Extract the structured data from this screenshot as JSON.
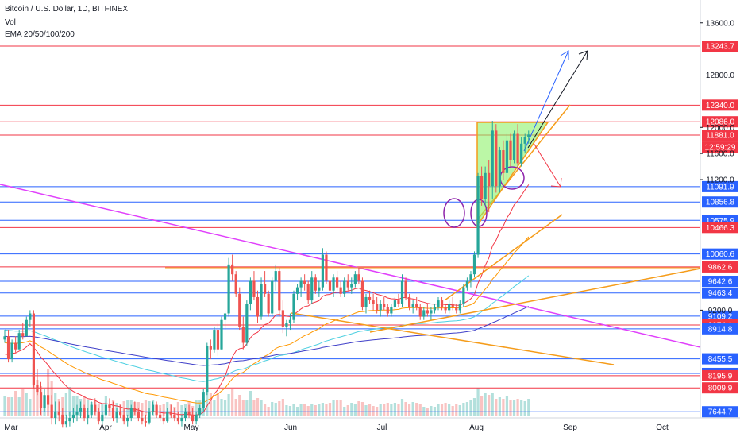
{
  "header": {
    "symbol_line": "Bitcoin / U.S. Dollar, 1D, BITFINEX",
    "vol_label": "Vol",
    "ema_label": "EMA 20/50/100/200"
  },
  "colors": {
    "up": "#26a69a",
    "down": "#ef5350",
    "ema20": "#f23645",
    "ema50": "#ff9800",
    "ema100": "#4dd0e1",
    "ema200": "#3f3fc8",
    "support_line": "#2962ff",
    "resistance_line": "#f23645",
    "magenta": "#e040fb",
    "orange": "#f59c1a",
    "triangle_fill": "#8ef26a",
    "circle": "#8e24aa"
  },
  "chart_data": {
    "type": "candlestick",
    "x_axis_labels": [
      "Mar",
      "Apr",
      "May",
      "Jun",
      "Jul",
      "Aug",
      "Sep",
      "Oct"
    ],
    "y_axis_ticks": [
      13600.0,
      12800.0,
      12000.0,
      11600.0,
      11200.0,
      9200.0
    ],
    "ylim": [
      7550,
      13950
    ],
    "indicators": [
      "Vol",
      "EMA 20/50/100/200"
    ],
    "horizontal_levels": [
      {
        "value": 13243.7,
        "color": "#f23645"
      },
      {
        "value": 12340.0,
        "color": "#f23645"
      },
      {
        "value": 12086.0,
        "color": "#f23645"
      },
      {
        "value": 11881.0,
        "color": "#f23645"
      },
      {
        "value": 11091.9,
        "color": "#2962ff"
      },
      {
        "value": 10856.8,
        "color": "#2962ff"
      },
      {
        "value": 10575.9,
        "color": "#2962ff"
      },
      {
        "value": 10466.3,
        "color": "#f23645"
      },
      {
        "value": 10060.6,
        "color": "#2962ff"
      },
      {
        "value": 9862.6,
        "color": "#f23645"
      },
      {
        "value": 9642.6,
        "color": "#2962ff"
      },
      {
        "value": 9463.4,
        "color": "#2962ff"
      },
      {
        "value": 9109.2,
        "color": "#2962ff"
      },
      {
        "value": 8974.1,
        "color": "#f23645"
      },
      {
        "value": 8914.8,
        "color": "#2962ff"
      },
      {
        "value": 8455.5,
        "color": "#2962ff"
      },
      {
        "value": 8231.8,
        "color": "#2962ff"
      },
      {
        "value": 8195.9,
        "color": "#f23645"
      },
      {
        "value": 8009.9,
        "color": "#f23645"
      },
      {
        "value": 7644.7,
        "color": "#2962ff"
      }
    ],
    "countdown_label": "12:59:29",
    "candles": [
      [
        0,
        8750,
        8900,
        8700,
        8800
      ],
      [
        1,
        8800,
        8900,
        8400,
        8450
      ],
      [
        2,
        8450,
        8750,
        8400,
        8700
      ],
      [
        3,
        8700,
        8800,
        8550,
        8600
      ],
      [
        4,
        8600,
        8900,
        8600,
        8850
      ],
      [
        5,
        8850,
        9000,
        8750,
        8800
      ],
      [
        6,
        8800,
        9100,
        8800,
        9050
      ],
      [
        7,
        9050,
        9200,
        8950,
        9150
      ],
      [
        8,
        9150,
        9200,
        8000,
        8050
      ],
      [
        9,
        8050,
        8300,
        7900,
        7950
      ],
      [
        10,
        7950,
        8100,
        7600,
        7700
      ],
      [
        11,
        7700,
        8000,
        7650,
        7900
      ],
      [
        12,
        7900,
        8100,
        7700,
        7750
      ],
      [
        13,
        7750,
        7900,
        7450,
        7550
      ],
      [
        14,
        7550,
        7800,
        7450,
        7650
      ],
      [
        15,
        7650,
        7800,
        7500,
        7600
      ],
      [
        16,
        7600,
        7700,
        7400,
        7450
      ],
      [
        17,
        7450,
        7600,
        7400,
        7500
      ],
      [
        18,
        7500,
        7650,
        7420,
        7550
      ],
      [
        19,
        7550,
        7700,
        7480,
        7600
      ],
      [
        20,
        7600,
        7750,
        7500,
        7650
      ],
      [
        21,
        7650,
        7800,
        7550,
        7700
      ],
      [
        22,
        7700,
        7750,
        7500,
        7550
      ],
      [
        23,
        7550,
        7700,
        7450,
        7600
      ],
      [
        24,
        7600,
        7800,
        7550,
        7750
      ],
      [
        25,
        7750,
        7850,
        7600,
        7650
      ],
      [
        26,
        7650,
        7700,
        7450,
        7500
      ],
      [
        27,
        7500,
        7650,
        7450,
        7600
      ],
      [
        28,
        7600,
        7800,
        7550,
        7750
      ],
      [
        29,
        7750,
        7850,
        7650,
        7700
      ],
      [
        30,
        7700,
        7800,
        7500,
        7550
      ],
      [
        31,
        7550,
        7700,
        7480,
        7650
      ],
      [
        32,
        7650,
        7750,
        7550,
        7600
      ],
      [
        33,
        7600,
        7700,
        7450,
        7500
      ],
      [
        34,
        7500,
        7600,
        7420,
        7550
      ],
      [
        35,
        7550,
        7750,
        7500,
        7700
      ],
      [
        36,
        7700,
        7800,
        7600,
        7650
      ],
      [
        37,
        7650,
        7700,
        7500,
        7550
      ],
      [
        38,
        7550,
        7650,
        7450,
        7500
      ],
      [
        39,
        7500,
        7600,
        7420,
        7480
      ],
      [
        40,
        7480,
        7700,
        7450,
        7650
      ],
      [
        41,
        7650,
        7800,
        7600,
        7750
      ],
      [
        42,
        7750,
        7800,
        7550,
        7600
      ],
      [
        43,
        7600,
        7700,
        7500,
        7550
      ],
      [
        44,
        7550,
        7650,
        7450,
        7500
      ],
      [
        45,
        7500,
        7700,
        7480,
        7650
      ],
      [
        46,
        7650,
        7750,
        7550,
        7600
      ],
      [
        47,
        7600,
        7700,
        7500,
        7550
      ],
      [
        48,
        7550,
        7650,
        7450,
        7500
      ],
      [
        49,
        7500,
        7600,
        7420,
        7550
      ],
      [
        50,
        7550,
        7700,
        7500,
        7650
      ],
      [
        51,
        7650,
        7750,
        7550,
        7600
      ],
      [
        52,
        7600,
        7700,
        7450,
        7500
      ],
      [
        53,
        7500,
        7650,
        7450,
        7600
      ],
      [
        54,
        7600,
        7750,
        7550,
        7700
      ],
      [
        55,
        7700,
        8000,
        7650,
        7950
      ],
      [
        56,
        7950,
        8700,
        7900,
        8650
      ],
      [
        57,
        8650,
        8750,
        8450,
        8600
      ],
      [
        58,
        8600,
        8950,
        8550,
        8900
      ],
      [
        59,
        8900,
        9000,
        8500,
        8600
      ],
      [
        60,
        8600,
        9100,
        8600,
        9050
      ],
      [
        61,
        9050,
        9200,
        8900,
        9150
      ],
      [
        62,
        9150,
        10000,
        9100,
        9900
      ],
      [
        63,
        9900,
        10050,
        9650,
        9750
      ],
      [
        64,
        9750,
        9800,
        9400,
        9450
      ],
      [
        65,
        9450,
        9550,
        8900,
        8950
      ],
      [
        66,
        8950,
        9100,
        8600,
        8700
      ],
      [
        67,
        8700,
        9350,
        8650,
        9300
      ],
      [
        68,
        9300,
        9700,
        9200,
        9650
      ],
      [
        69,
        9650,
        9800,
        9350,
        9400
      ],
      [
        70,
        9400,
        9500,
        9000,
        9100
      ],
      [
        71,
        9100,
        9700,
        9050,
        9600
      ],
      [
        72,
        9600,
        9800,
        9400,
        9450
      ],
      [
        73,
        9450,
        9500,
        9100,
        9150
      ],
      [
        74,
        9150,
        9700,
        9100,
        9650
      ],
      [
        75,
        9650,
        9900,
        9500,
        9800
      ],
      [
        76,
        9800,
        9850,
        9100,
        9200
      ],
      [
        77,
        9200,
        9350,
        8850,
        8950
      ],
      [
        78,
        8950,
        9050,
        8800,
        9000
      ],
      [
        79,
        9000,
        9150,
        8900,
        9050
      ],
      [
        80,
        9050,
        9500,
        9000,
        9450
      ],
      [
        81,
        9450,
        9600,
        9350,
        9550
      ],
      [
        82,
        9550,
        9700,
        9400,
        9650
      ],
      [
        83,
        9650,
        9750,
        9500,
        9600
      ],
      [
        84,
        9600,
        9650,
        9300,
        9350
      ],
      [
        85,
        9350,
        9800,
        9300,
        9700
      ],
      [
        86,
        9700,
        9750,
        9450,
        9500
      ],
      [
        87,
        9500,
        9650,
        9400,
        9550
      ],
      [
        88,
        9550,
        10150,
        9500,
        10050
      ],
      [
        89,
        10050,
        10100,
        9600,
        9650
      ],
      [
        90,
        9650,
        9800,
        9450,
        9500
      ],
      [
        91,
        9500,
        9750,
        9400,
        9700
      ],
      [
        92,
        9700,
        9800,
        9500,
        9550
      ],
      [
        93,
        9550,
        9650,
        9400,
        9450
      ],
      [
        94,
        9450,
        9700,
        9400,
        9650
      ],
      [
        95,
        9650,
        9750,
        9500,
        9550
      ],
      [
        96,
        9550,
        9700,
        9450,
        9600
      ],
      [
        97,
        9600,
        9800,
        9550,
        9750
      ],
      [
        98,
        9750,
        9850,
        9600,
        9650
      ],
      [
        99,
        9650,
        9700,
        9200,
        9250
      ],
      [
        100,
        9250,
        9450,
        9150,
        9400
      ],
      [
        101,
        9400,
        9500,
        9300,
        9350
      ],
      [
        102,
        9350,
        9450,
        9200,
        9300
      ],
      [
        103,
        9300,
        9400,
        9150,
        9200
      ],
      [
        104,
        9200,
        9350,
        9100,
        9300
      ],
      [
        105,
        9300,
        9400,
        9200,
        9250
      ],
      [
        106,
        9250,
        9300,
        9100,
        9150
      ],
      [
        107,
        9150,
        9300,
        9100,
        9250
      ],
      [
        108,
        9250,
        9400,
        9200,
        9350
      ],
      [
        109,
        9350,
        9450,
        9250,
        9300
      ],
      [
        110,
        9300,
        9750,
        9250,
        9650
      ],
      [
        111,
        9650,
        9700,
        9350,
        9400
      ],
      [
        112,
        9400,
        9450,
        9200,
        9250
      ],
      [
        113,
        9250,
        9350,
        9150,
        9300
      ],
      [
        114,
        9300,
        9400,
        9200,
        9250
      ],
      [
        115,
        9250,
        9300,
        9050,
        9100
      ],
      [
        116,
        9100,
        9250,
        9050,
        9200
      ],
      [
        117,
        9200,
        9300,
        9100,
        9150
      ],
      [
        118,
        9150,
        9250,
        9050,
        9200
      ],
      [
        119,
        9200,
        9300,
        9150,
        9250
      ],
      [
        120,
        9250,
        9400,
        9200,
        9350
      ],
      [
        121,
        9350,
        9400,
        9200,
        9250
      ],
      [
        122,
        9250,
        9300,
        9150,
        9200
      ],
      [
        123,
        9200,
        9350,
        9150,
        9300
      ],
      [
        124,
        9300,
        9400,
        9200,
        9250
      ],
      [
        125,
        9250,
        9300,
        9150,
        9200
      ],
      [
        126,
        9200,
        9350,
        9150,
        9300
      ],
      [
        127,
        9300,
        9600,
        9250,
        9550
      ],
      [
        128,
        9550,
        9700,
        9500,
        9650
      ],
      [
        129,
        9650,
        9800,
        9550,
        9750
      ],
      [
        130,
        9750,
        10100,
        9700,
        10050
      ],
      [
        131,
        10050,
        11300,
        10000,
        11250
      ],
      [
        132,
        11250,
        11400,
        10800,
        10900
      ],
      [
        133,
        10900,
        11400,
        10800,
        11300
      ],
      [
        134,
        11300,
        11500,
        10700,
        11100
      ],
      [
        135,
        11100,
        12100,
        10900,
        11950
      ],
      [
        136,
        11950,
        12050,
        11000,
        11100
      ],
      [
        137,
        11100,
        11700,
        11000,
        11650
      ],
      [
        138,
        11650,
        11800,
        11200,
        11300
      ],
      [
        139,
        11300,
        11900,
        11200,
        11800
      ],
      [
        140,
        11800,
        11900,
        11400,
        11500
      ],
      [
        141,
        11500,
        11950,
        11450,
        11900
      ],
      [
        142,
        11900,
        12050,
        11350,
        11450
      ],
      [
        143,
        11450,
        11850,
        11400,
        11750
      ],
      [
        144,
        11750,
        11900,
        11600,
        11850
      ],
      [
        145,
        11850,
        11950,
        11750,
        11890
      ]
    ],
    "volume": [
      26,
      24,
      24,
      32,
      24,
      34,
      30,
      22,
      66,
      46,
      38,
      26,
      60,
      44,
      30,
      22,
      24,
      29,
      37,
      25,
      26,
      22,
      26,
      21,
      18,
      21,
      16,
      16,
      26,
      15,
      21,
      17,
      16,
      19,
      20,
      21,
      18,
      18,
      17,
      21,
      19,
      21,
      13,
      14,
      15,
      18,
      16,
      12,
      18,
      14,
      16,
      18,
      13,
      20,
      21,
      22,
      40,
      30,
      21,
      30,
      22,
      20,
      28,
      34,
      22,
      27,
      21,
      20,
      32,
      21,
      23,
      20,
      16,
      12,
      18,
      17,
      19,
      22,
      14,
      13,
      15,
      12,
      16,
      16,
      13,
      16,
      14,
      15,
      17,
      15,
      17,
      20,
      20,
      20,
      12,
      14,
      17,
      16,
      19,
      18,
      14,
      15,
      13,
      12,
      15,
      16,
      17,
      15,
      17,
      16,
      22,
      18,
      16,
      18,
      17,
      16,
      12,
      11,
      13,
      12,
      15,
      15,
      17,
      15,
      13,
      15,
      14,
      17,
      18,
      20,
      23,
      36,
      26,
      30,
      27,
      30,
      22,
      24,
      22,
      26,
      20,
      20,
      22,
      21,
      19,
      22
    ]
  }
}
